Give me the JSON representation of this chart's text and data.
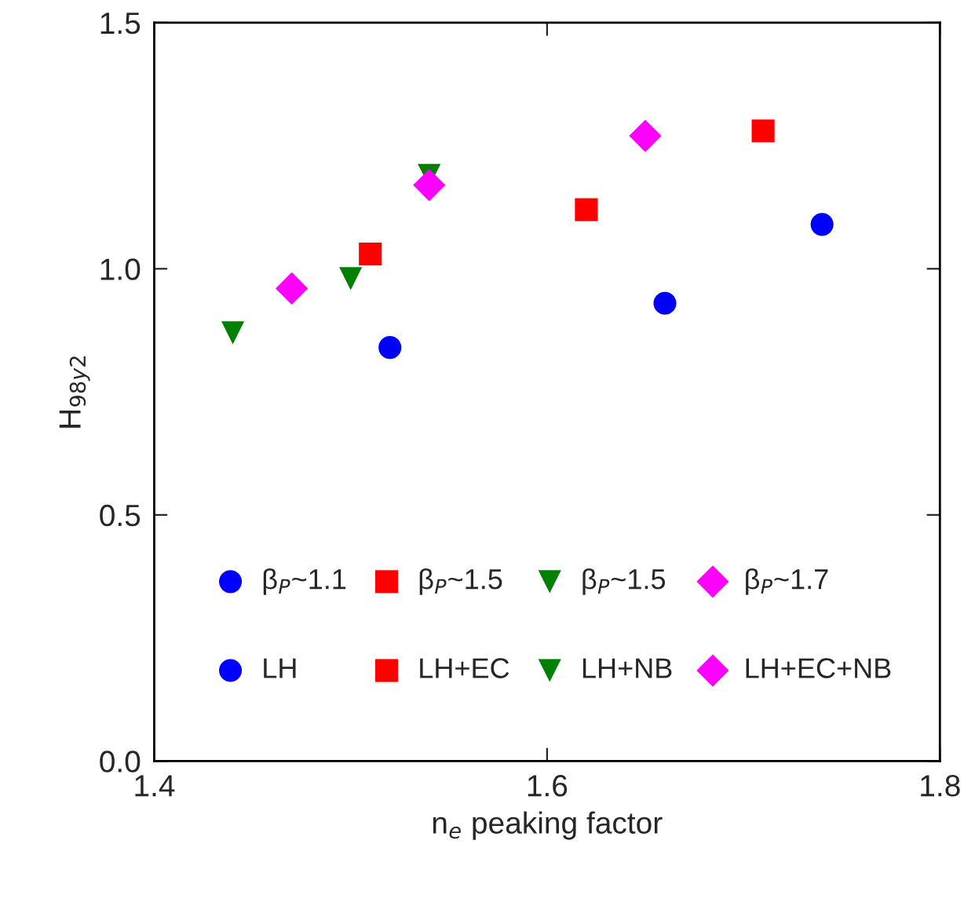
{
  "chart_data": {
    "type": "scatter",
    "xlabel": "n$_{e}$ peaking factor",
    "ylabel": "H$_{98y2}$",
    "xlim": [
      1.4,
      1.8
    ],
    "ylim": [
      0,
      1.5
    ],
    "xticks": [
      1.4,
      1.6,
      1.8
    ],
    "yticks": [
      {
        "value": 0,
        "label": "0.0"
      },
      {
        "value": 0.5,
        "label": "0.5"
      },
      {
        "value": 1.0,
        "label": "1.0"
      },
      {
        "value": 1.5,
        "label": "1.5"
      }
    ],
    "grid": false,
    "legend": "bottom",
    "annotations": [
      "β$_{P}$~1.1",
      "β$_{P}$~1.5",
      "β$_{P}$~1.5",
      "β$_{P}$~1.7"
    ],
    "series": [
      {
        "name": "LH",
        "color": "#0000ff",
        "marker": "circle",
        "x": [
          1.52,
          1.66,
          1.74
        ],
        "values": [
          0.84,
          0.93,
          1.09
        ]
      },
      {
        "name": "LH+EC",
        "color": "#ff0000",
        "marker": "square",
        "x": [
          1.51,
          1.62,
          1.71
        ],
        "values": [
          1.03,
          1.12,
          1.28
        ]
      },
      {
        "name": "LH+NB",
        "color": "#008000",
        "marker": "triangle",
        "x": [
          1.44,
          1.5,
          1.54
        ],
        "values": [
          0.87,
          0.98,
          1.19
        ]
      },
      {
        "name": "LH+EC+NB",
        "color": "#ff00ff",
        "marker": "diamond",
        "x": [
          1.47,
          1.54,
          1.65
        ],
        "values": [
          0.96,
          1.17,
          1.27
        ]
      }
    ]
  }
}
